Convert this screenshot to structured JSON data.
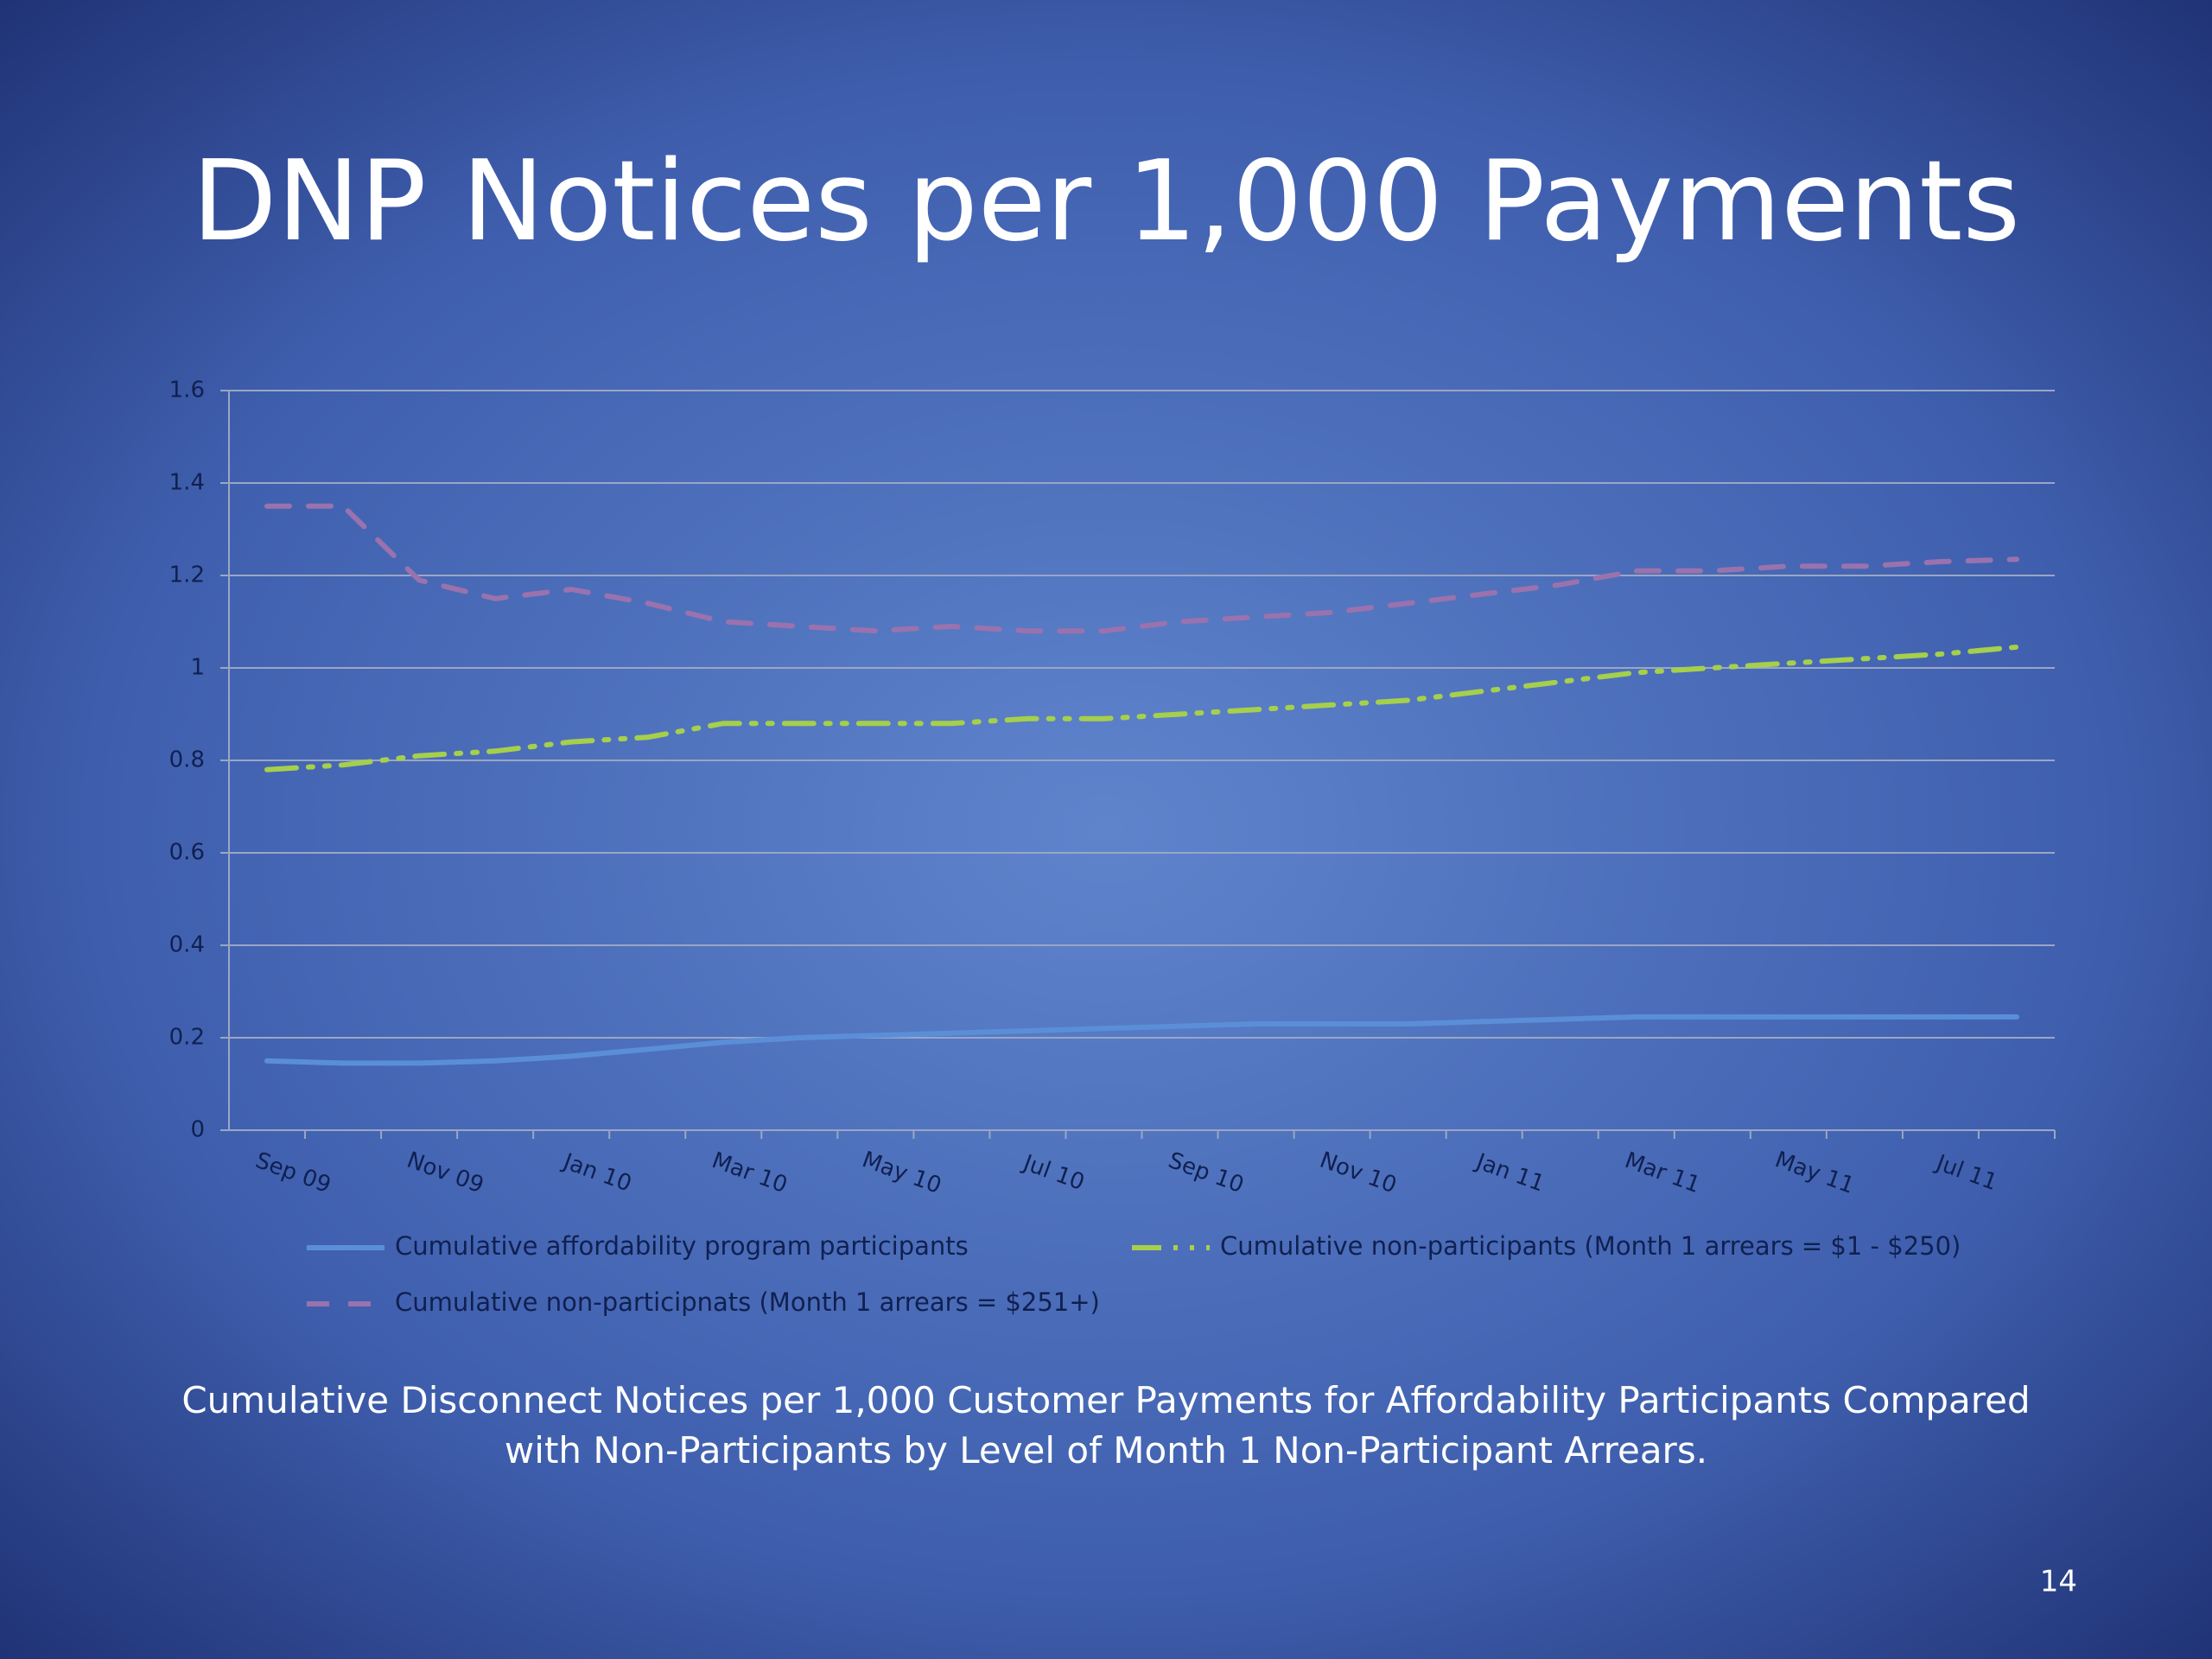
{
  "chart_data": {
    "type": "line",
    "title": "DNP Notices per 1,000 Payments",
    "caption": "Cumulative Disconnect Notices per 1,000 Customer Payments for Affordability Participants Compared with Non-Participants by Level of Month 1 Non-Participant Arrears.",
    "categories": [
      "Sep 09",
      null,
      "Nov 09",
      null,
      "Jan 10",
      null,
      "Mar 10",
      null,
      "May 10",
      null,
      "Jul 10",
      null,
      "Sep 10",
      null,
      "Nov 10",
      null,
      "Jan 11",
      null,
      "Mar 11",
      null,
      "May 11",
      null,
      "Jul 11",
      null
    ],
    "series": [
      {
        "name": "Cumulative affordability program participants",
        "color": "#5a8fd8",
        "dash": "solid",
        "values": [
          0.15,
          0.145,
          0.145,
          0.15,
          0.16,
          0.175,
          0.19,
          0.2,
          0.205,
          0.21,
          0.215,
          0.22,
          0.225,
          0.23,
          0.23,
          0.23,
          0.235,
          0.24,
          0.245,
          0.245,
          0.245,
          0.245,
          0.245,
          0.245
        ]
      },
      {
        "name": "Cumulative non-participants (Month 1 arrears = $1 - $250)",
        "color": "#a6cf4c",
        "dash": "dash-dot-dot",
        "values": [
          0.78,
          0.79,
          0.81,
          0.82,
          0.84,
          0.85,
          0.88,
          0.88,
          0.88,
          0.88,
          0.89,
          0.89,
          0.9,
          0.91,
          0.92,
          0.93,
          0.95,
          0.97,
          0.99,
          1.0,
          1.01,
          1.02,
          1.03,
          1.045
        ]
      },
      {
        "name": "Cumulative non-participnats (Month 1 arrears = $251+)",
        "color": "#9a72ad",
        "dash": "dash",
        "values": [
          1.35,
          1.35,
          1.19,
          1.15,
          1.17,
          1.14,
          1.1,
          1.09,
          1.08,
          1.09,
          1.08,
          1.08,
          1.1,
          1.11,
          1.12,
          1.14,
          1.16,
          1.18,
          1.21,
          1.21,
          1.22,
          1.22,
          1.23,
          1.235
        ]
      }
    ],
    "ylim": [
      0,
      1.6
    ],
    "yticks": [
      0,
      0.2,
      0.4,
      0.6,
      0.8,
      1,
      1.2,
      1.4,
      1.6
    ],
    "grid": true
  },
  "page_number": "14"
}
